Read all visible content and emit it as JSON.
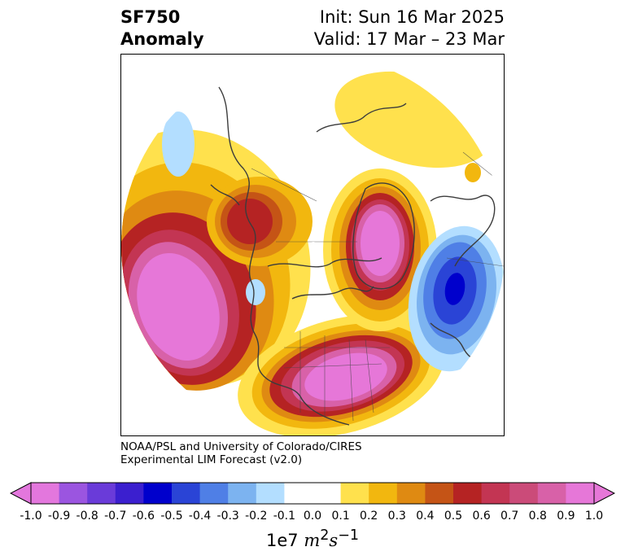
{
  "title": {
    "line1": "SF750",
    "line2": "Anomaly"
  },
  "subtitle": {
    "init": "Init: Sun 16 Mar 2025",
    "valid": "Valid: 17 Mar – 23 Mar"
  },
  "credits": {
    "line1": "NOAA/PSL and University of Colorado/CIRES",
    "line2": "Experimental LIM Forecast (v2.0)"
  },
  "colorbar": {
    "ticks": [
      "-1.0",
      "-0.9",
      "-0.8",
      "-0.7",
      "-0.6",
      "-0.5",
      "-0.4",
      "-0.3",
      "-0.2",
      "-0.1",
      "0.0",
      "0.1",
      "0.2",
      "0.3",
      "0.4",
      "0.5",
      "0.6",
      "0.7",
      "0.8",
      "0.9",
      "1.0"
    ],
    "colors": [
      "#e377dd",
      "#9b55e0",
      "#6a3bd9",
      "#3b1fcf",
      "#0000cc",
      "#2a44d6",
      "#4f7fe6",
      "#7cb3f0",
      "#b3deff",
      "#ffffff",
      "#ffffff",
      "#ffe14d",
      "#f2b70f",
      "#df8a12",
      "#c55416",
      "#b52323",
      "#c33553",
      "#cb4b79",
      "#d861a8",
      "#e677d8"
    ],
    "units_base": "1e7",
    "units_var": "m",
    "units_sup1": "2",
    "units_var2": "s",
    "units_sup2": "−1"
  },
  "map": {
    "projection": "north-polar-stereographic",
    "anomaly_features": [
      {
        "region": "North Pacific",
        "sign": "positive",
        "peak": 1.0
      },
      {
        "region": "Eastern United States",
        "sign": "positive",
        "peak": 1.0
      },
      {
        "region": "Greenland / North Atlantic",
        "sign": "positive",
        "peak": 1.0
      },
      {
        "region": "Central Canada",
        "sign": "positive",
        "peak": 0.6
      },
      {
        "region": "Western Europe",
        "sign": "negative",
        "peak": -0.6
      },
      {
        "region": "Arctic / Siberia",
        "sign": "positive",
        "peak": 0.3
      },
      {
        "region": "Alaska / Bering",
        "sign": "negative",
        "peak": -0.2
      }
    ]
  }
}
